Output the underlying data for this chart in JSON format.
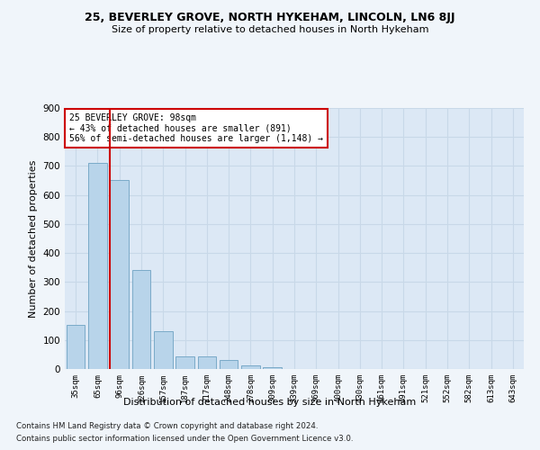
{
  "title": "25, BEVERLEY GROVE, NORTH HYKEHAM, LINCOLN, LN6 8JJ",
  "subtitle": "Size of property relative to detached houses in North Hykeham",
  "xlabel": "Distribution of detached houses by size in North Hykeham",
  "ylabel": "Number of detached properties",
  "bar_labels": [
    "35sqm",
    "65sqm",
    "96sqm",
    "126sqm",
    "157sqm",
    "187sqm",
    "217sqm",
    "248sqm",
    "278sqm",
    "309sqm",
    "339sqm",
    "369sqm",
    "400sqm",
    "430sqm",
    "461sqm",
    "491sqm",
    "521sqm",
    "552sqm",
    "582sqm",
    "613sqm",
    "643sqm"
  ],
  "bar_values": [
    152,
    712,
    652,
    340,
    130,
    43,
    42,
    30,
    13,
    5,
    0,
    0,
    0,
    0,
    0,
    0,
    0,
    0,
    0,
    0,
    0
  ],
  "bar_color": "#b8d4ea",
  "bar_edge_color": "#7aaac8",
  "vline_color": "#cc0000",
  "annotation_text": "25 BEVERLEY GROVE: 98sqm\n← 43% of detached houses are smaller (891)\n56% of semi-detached houses are larger (1,148) →",
  "annotation_box_color": "#ffffff",
  "annotation_box_edge_color": "#cc0000",
  "ylim": [
    0,
    900
  ],
  "yticks": [
    0,
    100,
    200,
    300,
    400,
    500,
    600,
    700,
    800,
    900
  ],
  "grid_color": "#c8d8e8",
  "bg_color": "#dce8f5",
  "fig_bg_color": "#f0f5fa",
  "footer1": "Contains HM Land Registry data © Crown copyright and database right 2024.",
  "footer2": "Contains public sector information licensed under the Open Government Licence v3.0."
}
